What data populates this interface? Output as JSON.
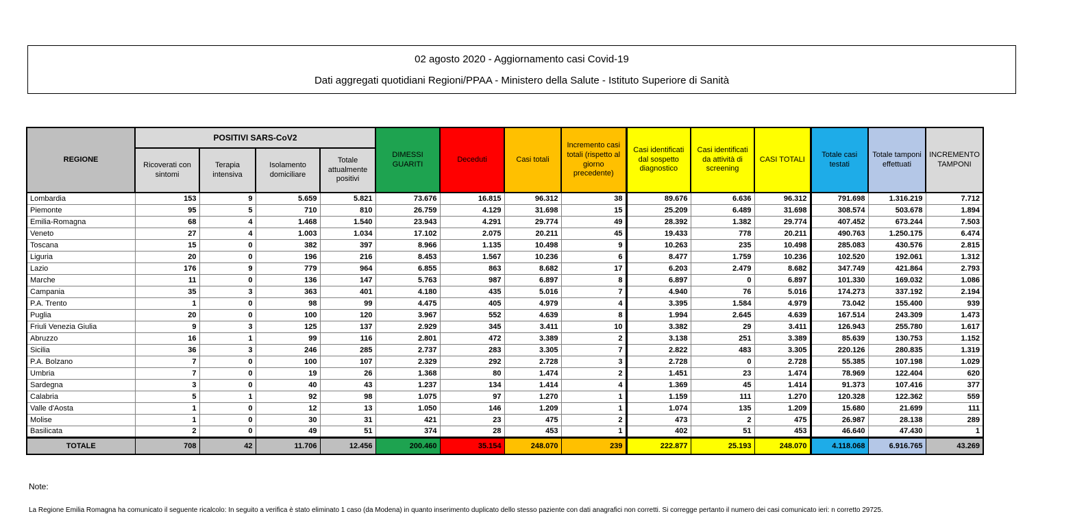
{
  "title_box": {
    "line1": "02 agosto 2020 - Aggiornamento casi Covid-19",
    "line2": "Dati aggregati quotidiani Regioni/PPAA - Ministero della Salute - Istituto Superiore di Sanità"
  },
  "table": {
    "group_header": "POSITIVI SARS-CoV2",
    "columns": [
      {
        "label": "REGIONE"
      },
      {
        "label": "Ricoverati con sintomi"
      },
      {
        "label": "Terapia intensiva"
      },
      {
        "label": "Isolamento domiciliare"
      },
      {
        "label": "Totale attualmente positivi"
      },
      {
        "label": "DIMESSI GUARITI"
      },
      {
        "label": "Deceduti"
      },
      {
        "label": "Casi totali"
      },
      {
        "label": "Incremento casi totali (rispetto al giorno precedente)"
      },
      {
        "label": "Casi identificati dal sospetto diagnostico"
      },
      {
        "label": "Casi identificati da attività di screening"
      },
      {
        "label": "CASI TOTALI"
      },
      {
        "label": "Totale casi testati"
      },
      {
        "label": "Totale tamponi effettuati"
      },
      {
        "label": "INCREMENTO TAMPONI"
      }
    ],
    "rows": [
      [
        "Lombardia",
        "153",
        "9",
        "5.659",
        "5.821",
        "73.676",
        "16.815",
        "96.312",
        "38",
        "89.676",
        "6.636",
        "96.312",
        "791.698",
        "1.316.219",
        "7.712"
      ],
      [
        "Piemonte",
        "95",
        "5",
        "710",
        "810",
        "26.759",
        "4.129",
        "31.698",
        "15",
        "25.209",
        "6.489",
        "31.698",
        "308.574",
        "503.678",
        "1.894"
      ],
      [
        "Emilia-Romagna",
        "68",
        "4",
        "1.468",
        "1.540",
        "23.943",
        "4.291",
        "29.774",
        "49",
        "28.392",
        "1.382",
        "29.774",
        "407.452",
        "673.244",
        "7.503"
      ],
      [
        "Veneto",
        "27",
        "4",
        "1.003",
        "1.034",
        "17.102",
        "2.075",
        "20.211",
        "45",
        "19.433",
        "778",
        "20.211",
        "490.763",
        "1.250.175",
        "6.474"
      ],
      [
        "Toscana",
        "15",
        "0",
        "382",
        "397",
        "8.966",
        "1.135",
        "10.498",
        "9",
        "10.263",
        "235",
        "10.498",
        "285.083",
        "430.576",
        "2.815"
      ],
      [
        "Liguria",
        "20",
        "0",
        "196",
        "216",
        "8.453",
        "1.567",
        "10.236",
        "6",
        "8.477",
        "1.759",
        "10.236",
        "102.520",
        "192.061",
        "1.312"
      ],
      [
        "Lazio",
        "176",
        "9",
        "779",
        "964",
        "6.855",
        "863",
        "8.682",
        "17",
        "6.203",
        "2.479",
        "8.682",
        "347.749",
        "421.864",
        "2.793"
      ],
      [
        "Marche",
        "11",
        "0",
        "136",
        "147",
        "5.763",
        "987",
        "6.897",
        "8",
        "6.897",
        "0",
        "6.897",
        "101.330",
        "169.032",
        "1.086"
      ],
      [
        "Campania",
        "35",
        "3",
        "363",
        "401",
        "4.180",
        "435",
        "5.016",
        "7",
        "4.940",
        "76",
        "5.016",
        "174.273",
        "337.192",
        "2.194"
      ],
      [
        "P.A. Trento",
        "1",
        "0",
        "98",
        "99",
        "4.475",
        "405",
        "4.979",
        "4",
        "3.395",
        "1.584",
        "4.979",
        "73.042",
        "155.400",
        "939"
      ],
      [
        "Puglia",
        "20",
        "0",
        "100",
        "120",
        "3.967",
        "552",
        "4.639",
        "8",
        "1.994",
        "2.645",
        "4.639",
        "167.514",
        "243.309",
        "1.473"
      ],
      [
        "Friuli Venezia Giulia",
        "9",
        "3",
        "125",
        "137",
        "2.929",
        "345",
        "3.411",
        "10",
        "3.382",
        "29",
        "3.411",
        "126.943",
        "255.780",
        "1.617"
      ],
      [
        "Abruzzo",
        "16",
        "1",
        "99",
        "116",
        "2.801",
        "472",
        "3.389",
        "2",
        "3.138",
        "251",
        "3.389",
        "85.639",
        "130.753",
        "1.152"
      ],
      [
        "Sicilia",
        "36",
        "3",
        "246",
        "285",
        "2.737",
        "283",
        "3.305",
        "7",
        "2.822",
        "483",
        "3.305",
        "220.126",
        "280.835",
        "1.319"
      ],
      [
        "P.A. Bolzano",
        "7",
        "0",
        "100",
        "107",
        "2.329",
        "292",
        "2.728",
        "3",
        "2.728",
        "0",
        "2.728",
        "55.385",
        "107.198",
        "1.029"
      ],
      [
        "Umbria",
        "7",
        "0",
        "19",
        "26",
        "1.368",
        "80",
        "1.474",
        "2",
        "1.451",
        "23",
        "1.474",
        "78.969",
        "122.404",
        "620"
      ],
      [
        "Sardegna",
        "3",
        "0",
        "40",
        "43",
        "1.237",
        "134",
        "1.414",
        "4",
        "1.369",
        "45",
        "1.414",
        "91.373",
        "107.416",
        "377"
      ],
      [
        "Calabria",
        "5",
        "1",
        "92",
        "98",
        "1.075",
        "97",
        "1.270",
        "1",
        "1.159",
        "111",
        "1.270",
        "120.328",
        "122.362",
        "559"
      ],
      [
        "Valle d'Aosta",
        "1",
        "0",
        "12",
        "13",
        "1.050",
        "146",
        "1.209",
        "1",
        "1.074",
        "135",
        "1.209",
        "15.680",
        "21.699",
        "111"
      ],
      [
        "Molise",
        "1",
        "0",
        "30",
        "31",
        "421",
        "23",
        "475",
        "2",
        "473",
        "2",
        "475",
        "26.987",
        "28.138",
        "289"
      ],
      [
        "Basilicata",
        "2",
        "0",
        "49",
        "51",
        "374",
        "28",
        "453",
        "1",
        "402",
        "51",
        "453",
        "46.640",
        "47.430",
        "1"
      ]
    ],
    "total_row": [
      "TOTALE",
      "708",
      "42",
      "11.706",
      "12.456",
      "200.460",
      "35.154",
      "248.070",
      "239",
      "222.877",
      "25.193",
      "248.070",
      "4.118.068",
      "6.916.765",
      "43.269"
    ]
  },
  "notes": {
    "label": "Note:",
    "text": "La Regione Emilia Romagna ha comunicato il seguente ricalcolo: In seguito a verifica è stato eliminato 1 caso (da Modena) in quanto inserimento duplicato dello stesso paziente con dati anagrafici non corretti. Si corregge pertanto il numero dei casi comunicato ieri: n corretto 29725."
  },
  "colors": {
    "green": "#1EA350",
    "red": "#FF0000",
    "orange": "#FFC000",
    "yellow": "#FFFF00",
    "cyan": "#1EACE8",
    "light_blue": "#B4C7E7",
    "gray": "#BFBFBF",
    "light_gray": "#D9D9D9"
  }
}
